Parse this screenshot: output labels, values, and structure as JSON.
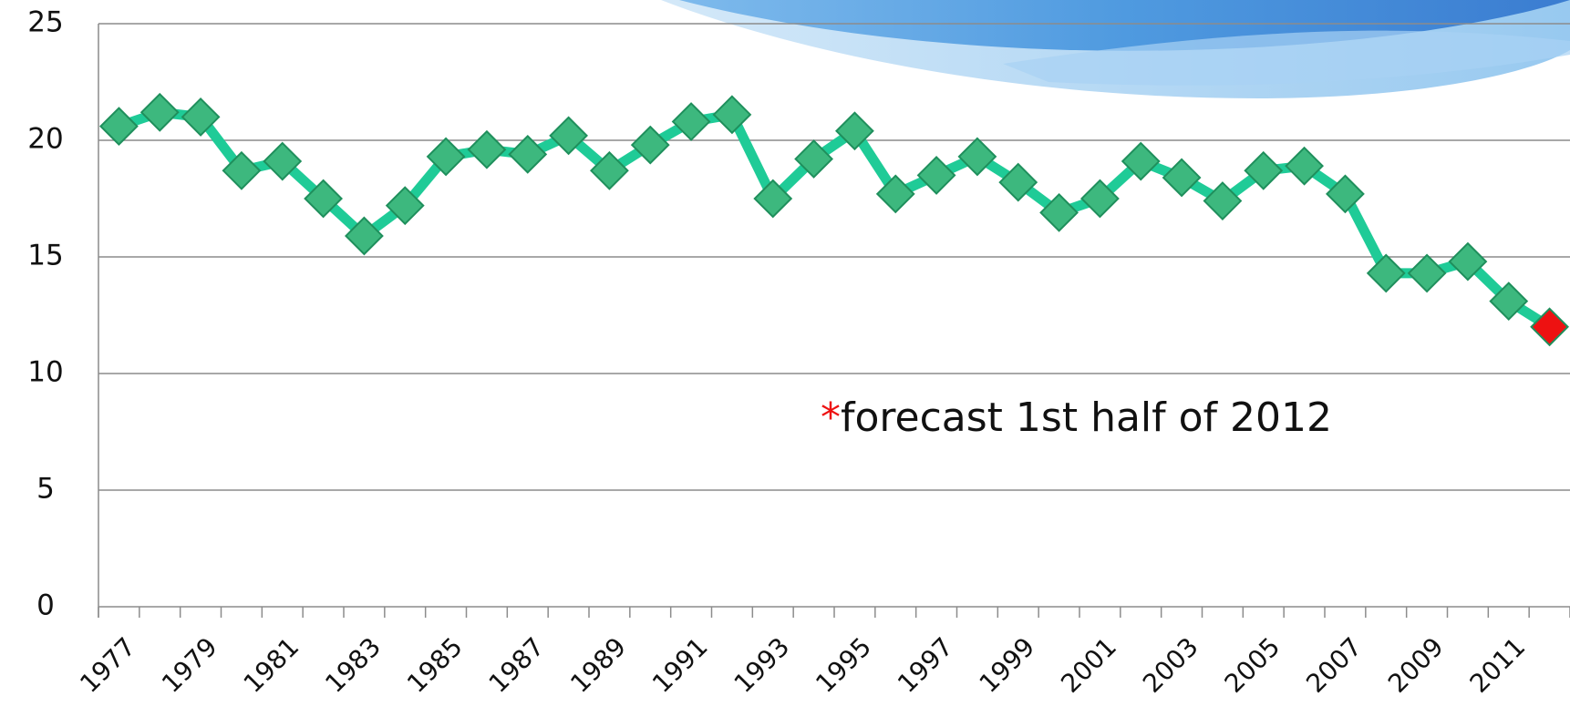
{
  "chart_data": {
    "type": "line",
    "categories": [
      "1977",
      null,
      "1979",
      null,
      "1981",
      null,
      "1983",
      null,
      "1985",
      null,
      "1987",
      null,
      "1989",
      null,
      "1991",
      null,
      "1993",
      null,
      "1995",
      null,
      "1997",
      null,
      "1999",
      null,
      "2001",
      null,
      "2003",
      null,
      "2005",
      null,
      "2007",
      null,
      "2009",
      null,
      "2011",
      null
    ],
    "series": [
      {
        "color": "#1fcb97",
        "values": [
          20.6,
          21.2,
          21.0,
          18.7,
          19.1,
          17.5,
          15.9,
          17.2,
          19.3,
          19.6,
          19.4,
          20.2,
          18.7,
          19.8,
          20.8,
          21.1,
          17.5,
          19.2,
          20.4,
          17.7,
          18.5,
          19.3,
          18.2,
          16.9,
          17.5,
          19.1,
          18.4,
          17.4,
          18.7,
          18.9,
          17.7,
          14.3,
          14.3,
          14.8,
          13.1,
          12.0
        ],
        "marker_colors": [
          "#3db87e",
          "#3db87e",
          "#3db87e",
          "#3db87e",
          "#3db87e",
          "#3db87e",
          "#3db87e",
          "#3db87e",
          "#3db87e",
          "#3db87e",
          "#3db87e",
          "#3db87e",
          "#3db87e",
          "#3db87e",
          "#3db87e",
          "#3db87e",
          "#3db87e",
          "#3db87e",
          "#3db87e",
          "#3db87e",
          "#3db87e",
          "#3db87e",
          "#3db87e",
          "#3db87e",
          "#3db87e",
          "#3db87e",
          "#3db87e",
          "#3db87e",
          "#3db87e",
          "#3db87e",
          "#3db87e",
          "#3db87e",
          "#3db87e",
          "#3db87e",
          "#3db87e",
          "#ee1111"
        ]
      }
    ],
    "ylim": [
      0,
      25
    ],
    "yticks": [
      0,
      5,
      10,
      15,
      20,
      25
    ],
    "grid": true,
    "annotation": {
      "marker": "*",
      "text": "forecast 1st half of 2012",
      "marker_color": "#ee1111"
    }
  }
}
